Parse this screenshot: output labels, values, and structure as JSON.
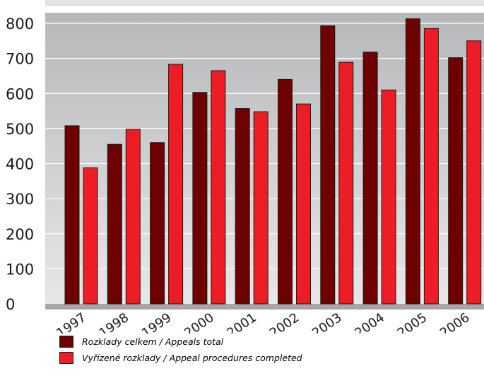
{
  "chart_data": {
    "type": "bar",
    "title": "",
    "xlabel": "",
    "ylabel": "",
    "categories": [
      "1997",
      "1998",
      "1999",
      "2000",
      "2001",
      "2002",
      "2003",
      "2004",
      "2005",
      "2006"
    ],
    "series": [
      {
        "name": "Rozklady celkem / Appeals total",
        "color": "#6e0000",
        "values": [
          508,
          455,
          460,
          603,
          557,
          640,
          793,
          718,
          813,
          702
        ]
      },
      {
        "name": "Vyřízené rozklady / Appeal procedures completed",
        "color": "#ee1c25",
        "values": [
          388,
          498,
          683,
          665,
          548,
          570,
          689,
          610,
          785,
          750
        ]
      }
    ],
    "yticks": [
      "0",
      "100",
      "200",
      "300",
      "400",
      "500",
      "600",
      "700",
      "800"
    ],
    "ylim": [
      0,
      800
    ],
    "grid": true,
    "legend_position": "bottom-left",
    "colors": {
      "plot_top": "#b7b8ba",
      "plot_bottom": "#e8e8e8",
      "gridline": "#ffffff",
      "baseline": "#a5a6a8"
    }
  }
}
